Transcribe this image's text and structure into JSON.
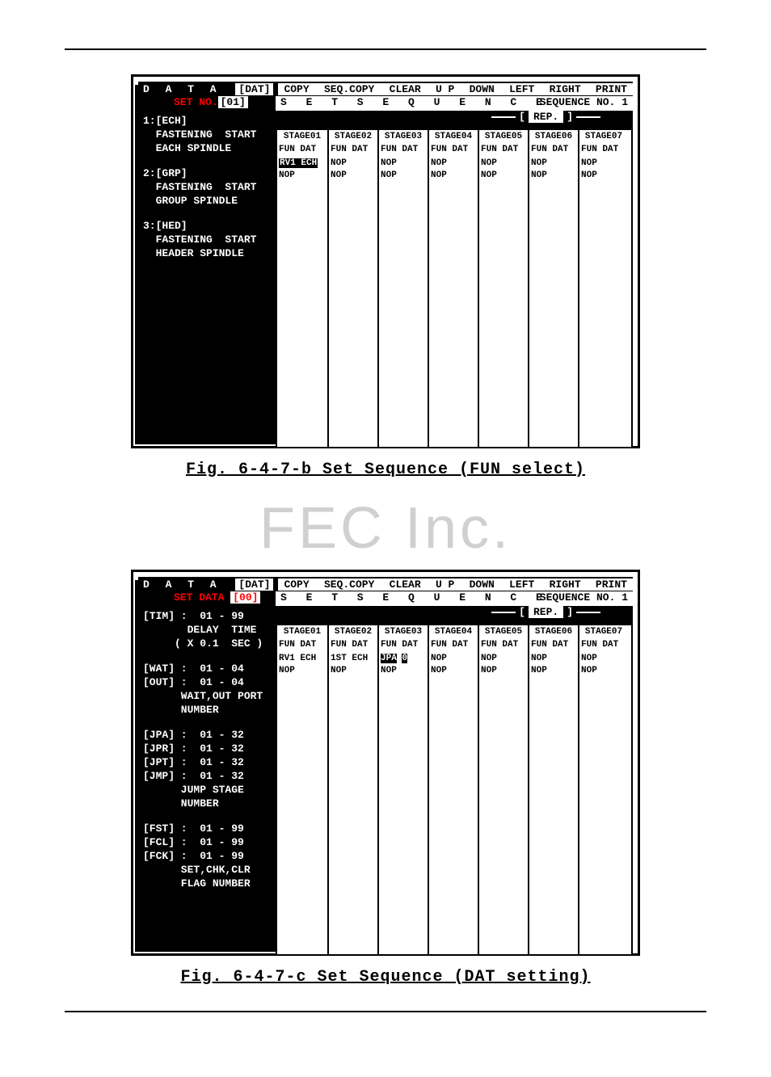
{
  "watermark": "FEC Inc.",
  "caption1": "Fig. 6-4-7-b Set Sequence (FUN select)",
  "caption2": "Fig. 6-4-7-c Set Sequence (DAT setting)",
  "menubar": {
    "left_label": "D A T A",
    "left_tag": "[DAT]",
    "items": [
      "COPY",
      "SEQ.COPY",
      "CLEAR",
      "U P",
      "DOWN",
      "LEFT",
      "RIGHT",
      "PRINT"
    ]
  },
  "seq_title": "S E T   S E Q U E N C E",
  "seq_no_label": "SEQUENCE NO. 1",
  "rep_label": "REP.",
  "stage_headers": [
    "STAGE01",
    "STAGE02",
    "STAGE03",
    "STAGE04",
    "STAGE05",
    "STAGE06",
    "STAGE07"
  ],
  "fun_dat": "FUN DAT",
  "screen1": {
    "setno_label": "SET NO.",
    "setno_val": "[01]",
    "sidebar": [
      {
        "head": "1:[ECH]",
        "lines": [
          "  FASTENING  START",
          "  EACH SPINDLE"
        ]
      },
      {
        "head": "2:[GRP]",
        "lines": [
          "  FASTENING  START",
          "  GROUP SPINDLE"
        ]
      },
      {
        "head": "3:[HED]",
        "lines": [
          "  FASTENING  START",
          "  HEADER SPINDLE"
        ]
      }
    ],
    "grid_cols": [
      [
        "RV1 ECH",
        "NOP"
      ],
      [
        "NOP",
        "NOP"
      ],
      [
        "NOP",
        "NOP"
      ],
      [
        "NOP",
        "NOP"
      ],
      [
        "NOP",
        "NOP"
      ],
      [
        "NOP",
        "NOP"
      ],
      [
        "NOP",
        "NOP"
      ]
    ],
    "highlight_col": 0,
    "highlight_row": 0
  },
  "screen2": {
    "setno_label": "SET DATA",
    "setno_val": "[00]",
    "sidebar": [
      {
        "rows": [
          "[TIM] :  01 - 99",
          "       DELAY  TIME",
          "     ( X 0.1  SEC )"
        ]
      },
      {
        "rows": [
          "[WAT] :  01 - 04",
          "[OUT] :  01 - 04",
          "      WAIT,OUT PORT",
          "      NUMBER"
        ]
      },
      {
        "rows": [
          "[JPA] :  01 - 32",
          "[JPR] :  01 - 32",
          "[JPT] :  01 - 32",
          "[JMP] :  01 - 32",
          "      JUMP STAGE",
          "      NUMBER"
        ]
      },
      {
        "rows": [
          "[FST] :  01 - 99",
          "[FCL] :  01 - 99",
          "[FCK] :  01 - 99",
          "      SET,CHK,CLR",
          "      FLAG NUMBER"
        ]
      }
    ],
    "grid_cols": [
      [
        "RV1 ECH",
        "NOP"
      ],
      [
        "1ST ECH",
        "NOP"
      ],
      [
        "JPA   0",
        "NOP"
      ],
      [
        "NOP",
        "NOP"
      ],
      [
        "NOP",
        "NOP"
      ],
      [
        "NOP",
        "NOP"
      ],
      [
        "NOP",
        "NOP"
      ]
    ],
    "highlight_col": 2,
    "highlight_text": "JPA",
    "highlight_val": "0"
  }
}
